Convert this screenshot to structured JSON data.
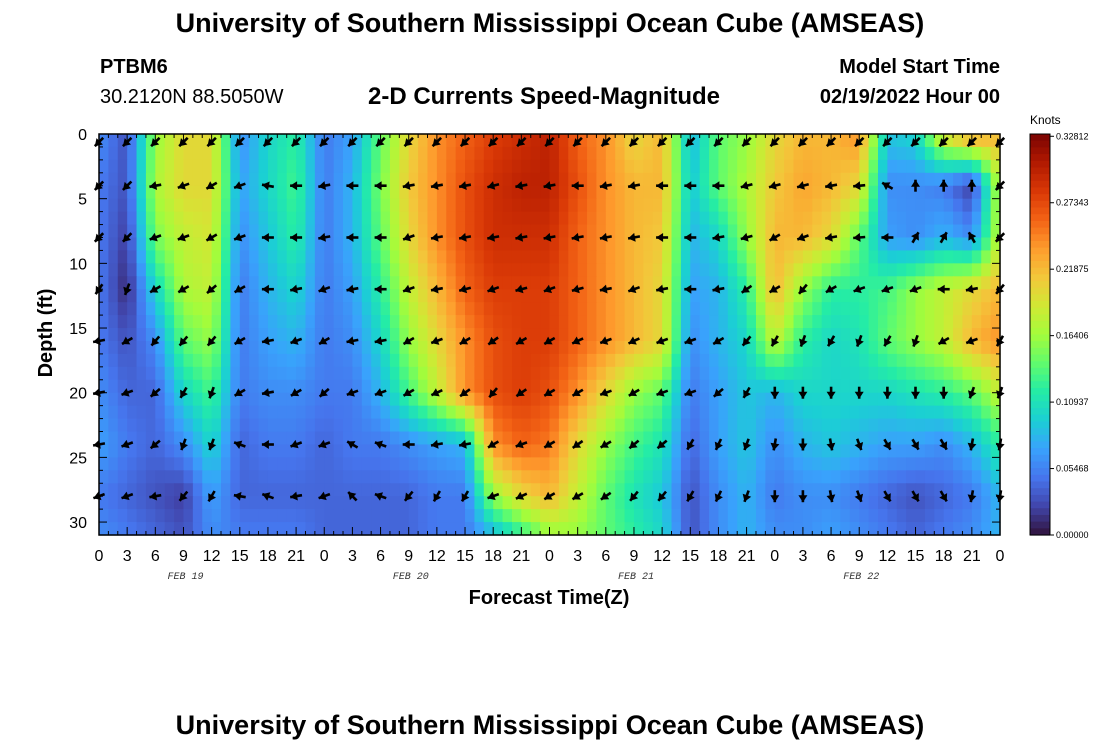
{
  "header": {
    "title": "University of Southern Mississippi Ocean Cube (AMSEAS)",
    "station_id": "PTBM6",
    "station_coords": "30.2120N  88.5050W",
    "product": "2-D Currents Speed-Magnitude",
    "model_start_label": "Model Start Time",
    "model_start_value": "02/19/2022 Hour 00"
  },
  "footer": {
    "title": "University of Southern Mississippi Ocean Cube (AMSEAS)"
  },
  "chart_data": {
    "type": "heatmap",
    "title": "2-D Currents Speed-Magnitude",
    "xlabel": "Forecast Time(Z)",
    "ylabel": "Depth (ft)",
    "x_tick_labels": [
      "0",
      "3",
      "6",
      "9",
      "12",
      "15",
      "18",
      "21",
      "0",
      "3",
      "6",
      "9",
      "12",
      "15",
      "18",
      "21",
      "0",
      "3",
      "6",
      "9",
      "12",
      "15",
      "18",
      "21",
      "0",
      "3",
      "6",
      "9",
      "12",
      "15",
      "18",
      "21",
      "0"
    ],
    "x_hours_range": [
      0,
      96
    ],
    "date_labels": [
      {
        "label": "FEB 19",
        "hour": 9
      },
      {
        "label": "FEB 20",
        "hour": 33
      },
      {
        "label": "FEB 21",
        "hour": 57
      },
      {
        "label": "FEB 22",
        "hour": 81
      }
    ],
    "y_ticks": [
      0,
      5,
      10,
      15,
      20,
      25,
      30
    ],
    "ylim": [
      31,
      0
    ],
    "depth_levels": [
      0,
      4,
      8,
      12,
      16,
      20,
      24,
      28
    ],
    "colorbar": {
      "label": "Knots",
      "range": [
        0,
        0.33
      ],
      "tick_labels": [
        "0.32812",
        "0.27343",
        "0.21875",
        "0.16406",
        "0.10937",
        "0.05468",
        "0.00000"
      ],
      "tick_values": [
        0.32812,
        0.27343,
        0.21875,
        0.16406,
        0.10937,
        0.05468,
        0.0
      ],
      "colors": [
        "#30123b",
        "#4145ab",
        "#4675ed",
        "#39a2fc",
        "#1bcfd4",
        "#24eca6",
        "#61fc6c",
        "#a4fc3b",
        "#d1e834",
        "#f3c63a",
        "#fe9b2d",
        "#f36315",
        "#d93806",
        "#b11901",
        "#7a0402"
      ]
    },
    "speed_grid_hours": [
      0,
      3,
      6,
      9,
      12,
      15,
      18,
      21,
      24,
      27,
      30,
      33,
      36,
      39,
      42,
      45,
      48,
      51,
      54,
      57,
      60,
      63,
      66,
      69,
      72,
      75,
      78,
      81,
      84,
      87,
      90,
      93,
      96
    ],
    "speed_grid_depths": [
      0,
      4,
      8,
      12,
      16,
      20,
      24,
      28,
      31
    ],
    "speed_grid_knots": [
      [
        0.06,
        0.03,
        0.16,
        0.2,
        0.2,
        0.06,
        0.1,
        0.12,
        0.05,
        0.07,
        0.14,
        0.2,
        0.24,
        0.26,
        0.28,
        0.29,
        0.3,
        0.26,
        0.24,
        0.2,
        0.22,
        0.08,
        0.14,
        0.16,
        0.2,
        0.22,
        0.22,
        0.24,
        0.09,
        0.1,
        0.2,
        0.24,
        0.22
      ],
      [
        0.05,
        0.03,
        0.17,
        0.2,
        0.2,
        0.07,
        0.1,
        0.13,
        0.05,
        0.08,
        0.15,
        0.21,
        0.24,
        0.27,
        0.29,
        0.3,
        0.3,
        0.27,
        0.24,
        0.22,
        0.22,
        0.09,
        0.14,
        0.17,
        0.21,
        0.23,
        0.22,
        0.2,
        0.06,
        0.06,
        0.05,
        0.02,
        0.18
      ],
      [
        0.05,
        0.02,
        0.15,
        0.18,
        0.19,
        0.06,
        0.09,
        0.12,
        0.05,
        0.08,
        0.14,
        0.2,
        0.24,
        0.27,
        0.29,
        0.29,
        0.29,
        0.26,
        0.24,
        0.22,
        0.21,
        0.08,
        0.1,
        0.16,
        0.22,
        0.22,
        0.2,
        0.14,
        0.07,
        0.06,
        0.08,
        0.06,
        0.18
      ],
      [
        0.05,
        0.01,
        0.1,
        0.17,
        0.18,
        0.05,
        0.08,
        0.1,
        0.05,
        0.07,
        0.12,
        0.18,
        0.22,
        0.26,
        0.28,
        0.28,
        0.28,
        0.26,
        0.24,
        0.22,
        0.2,
        0.07,
        0.08,
        0.12,
        0.22,
        0.16,
        0.12,
        0.12,
        0.13,
        0.16,
        0.18,
        0.2,
        0.22
      ],
      [
        0.05,
        0.03,
        0.06,
        0.14,
        0.16,
        0.05,
        0.07,
        0.08,
        0.05,
        0.06,
        0.1,
        0.16,
        0.2,
        0.24,
        0.27,
        0.28,
        0.28,
        0.26,
        0.24,
        0.22,
        0.2,
        0.06,
        0.08,
        0.1,
        0.18,
        0.12,
        0.1,
        0.11,
        0.14,
        0.16,
        0.18,
        0.22,
        0.24
      ],
      [
        0.06,
        0.04,
        0.04,
        0.1,
        0.13,
        0.05,
        0.06,
        0.06,
        0.05,
        0.05,
        0.08,
        0.13,
        0.18,
        0.24,
        0.27,
        0.28,
        0.27,
        0.24,
        0.2,
        0.16,
        0.14,
        0.05,
        0.07,
        0.09,
        0.08,
        0.1,
        0.1,
        0.1,
        0.1,
        0.11,
        0.12,
        0.14,
        0.18
      ],
      [
        0.07,
        0.05,
        0.04,
        0.06,
        0.1,
        0.04,
        0.05,
        0.05,
        0.04,
        0.05,
        0.05,
        0.06,
        0.07,
        0.08,
        0.24,
        0.26,
        0.25,
        0.2,
        0.16,
        0.13,
        0.11,
        0.04,
        0.07,
        0.09,
        0.06,
        0.08,
        0.09,
        0.08,
        0.07,
        0.07,
        0.06,
        0.08,
        0.12
      ],
      [
        0.05,
        0.04,
        0.03,
        0.02,
        0.07,
        0.04,
        0.04,
        0.04,
        0.04,
        0.04,
        0.04,
        0.04,
        0.05,
        0.05,
        0.16,
        0.2,
        0.22,
        0.18,
        0.14,
        0.11,
        0.09,
        0.03,
        0.06,
        0.08,
        0.05,
        0.06,
        0.06,
        0.05,
        0.04,
        0.03,
        0.04,
        0.05,
        0.08
      ],
      [
        0.06,
        0.05,
        0.04,
        0.03,
        0.06,
        0.05,
        0.05,
        0.05,
        0.04,
        0.04,
        0.04,
        0.04,
        0.05,
        0.05,
        0.08,
        0.12,
        0.16,
        0.16,
        0.14,
        0.12,
        0.1,
        0.03,
        0.06,
        0.08,
        0.06,
        0.06,
        0.07,
        0.06,
        0.05,
        0.04,
        0.05,
        0.06,
        0.08
      ]
    ],
    "vector_hours": [
      0,
      3,
      6,
      9,
      12,
      15,
      18,
      21,
      24,
      27,
      30,
      33,
      36,
      39,
      42,
      45,
      48,
      51,
      54,
      57,
      60,
      63,
      66,
      69,
      72,
      75,
      78,
      81,
      84,
      87,
      90,
      93,
      96
    ],
    "vector_depths": [
      0,
      4,
      8,
      12,
      16,
      20,
      24,
      28
    ],
    "vector_directions_deg": [
      [
        225,
        225,
        225,
        225,
        225,
        225,
        225,
        225,
        225,
        225,
        225,
        225,
        225,
        225,
        225,
        225,
        225,
        225,
        225,
        225,
        225,
        225,
        225,
        225,
        225,
        225,
        225,
        225,
        225,
        225,
        225,
        225,
        225
      ],
      [
        225,
        225,
        190,
        200,
        210,
        200,
        170,
        180,
        190,
        180,
        180,
        190,
        190,
        190,
        195,
        190,
        190,
        180,
        190,
        190,
        180,
        180,
        180,
        195,
        195,
        195,
        190,
        185,
        150,
        90,
        90,
        90,
        225
      ],
      [
        225,
        225,
        200,
        200,
        210,
        200,
        180,
        180,
        190,
        180,
        180,
        200,
        190,
        190,
        190,
        190,
        190,
        190,
        190,
        190,
        180,
        180,
        190,
        195,
        210,
        200,
        190,
        185,
        180,
        60,
        60,
        120,
        225
      ],
      [
        235,
        250,
        210,
        210,
        220,
        210,
        180,
        190,
        200,
        190,
        180,
        200,
        190,
        195,
        200,
        195,
        200,
        195,
        190,
        200,
        190,
        180,
        190,
        215,
        210,
        230,
        210,
        200,
        200,
        200,
        180,
        190,
        230
      ],
      [
        190,
        210,
        230,
        230,
        230,
        210,
        190,
        200,
        210,
        190,
        190,
        210,
        200,
        210,
        215,
        210,
        210,
        205,
        200,
        205,
        200,
        200,
        210,
        230,
        240,
        250,
        240,
        250,
        240,
        250,
        210,
        200,
        240
      ],
      [
        190,
        200,
        220,
        240,
        250,
        210,
        190,
        210,
        220,
        200,
        200,
        210,
        205,
        215,
        230,
        215,
        210,
        210,
        200,
        210,
        200,
        200,
        220,
        240,
        270,
        270,
        270,
        270,
        270,
        270,
        270,
        250,
        250
      ],
      [
        190,
        200,
        220,
        250,
        250,
        160,
        180,
        200,
        200,
        150,
        160,
        180,
        190,
        190,
        210,
        200,
        210,
        215,
        210,
        220,
        220,
        240,
        245,
        250,
        260,
        270,
        280,
        290,
        300,
        300,
        300,
        260,
        260
      ],
      [
        200,
        200,
        190,
        230,
        240,
        170,
        160,
        190,
        200,
        135,
        160,
        230,
        240,
        240,
        200,
        205,
        210,
        210,
        215,
        230,
        230,
        240,
        245,
        250,
        270,
        270,
        280,
        290,
        300,
        300,
        300,
        260,
        260
      ]
    ]
  }
}
